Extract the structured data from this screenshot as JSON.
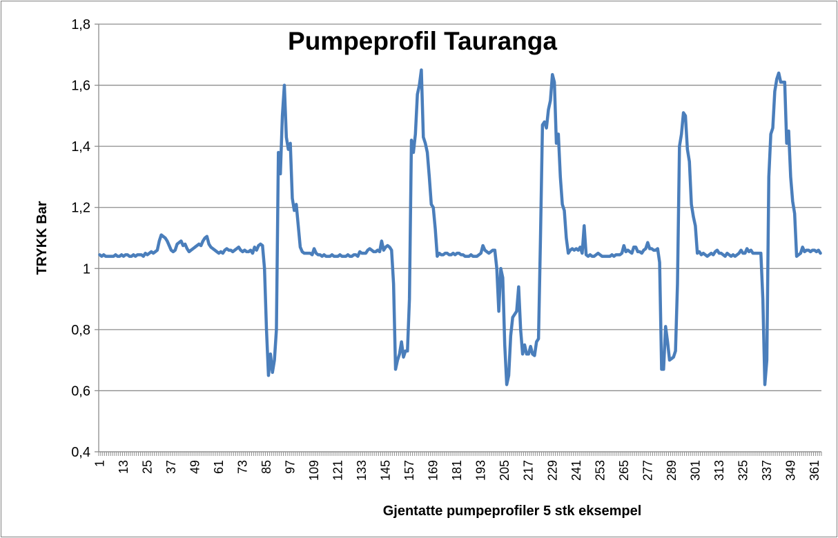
{
  "chart_data": {
    "type": "line",
    "title": "Pumpeprofil Tauranga",
    "x_label": "Gjentatte pumpeprofiler 5 stk eksempel",
    "y_label": "TRYKK Bar",
    "ylim": [
      0.4,
      1.8
    ],
    "yticks": [
      {
        "value": 0.4,
        "label": "0,4"
      },
      {
        "value": 0.6,
        "label": "0,6"
      },
      {
        "value": 0.8,
        "label": "0,8"
      },
      1,
      {
        "value": 1.2,
        "label": "1,2"
      },
      {
        "value": 1.4,
        "label": "1,4"
      },
      {
        "value": 1.6,
        "label": "1,6"
      },
      {
        "value": 1.8,
        "label": "1,8"
      }
    ],
    "grid": true,
    "color": "#4a7ebb",
    "categories": [
      1,
      null,
      null,
      null,
      null,
      null,
      null,
      null,
      null,
      null,
      null,
      null,
      13,
      null,
      null,
      null,
      null,
      null,
      null,
      null,
      null,
      null,
      null,
      null,
      25,
      null,
      null,
      null,
      null,
      null,
      null,
      null,
      null,
      null,
      null,
      null,
      37,
      null,
      null,
      null,
      null,
      null,
      null,
      null,
      null,
      null,
      null,
      null,
      49,
      null,
      null,
      null,
      null,
      null,
      null,
      null,
      null,
      null,
      null,
      null,
      61,
      null,
      null,
      null,
      null,
      null,
      null,
      null,
      null,
      null,
      null,
      null,
      73,
      null,
      null,
      null,
      null,
      null,
      null,
      null,
      null,
      null,
      null,
      null,
      85,
      null,
      null,
      null,
      null,
      null,
      null,
      null,
      null,
      null,
      null,
      null,
      97,
      null,
      null,
      null,
      null,
      null,
      null,
      null,
      null,
      null,
      null,
      null,
      109,
      null,
      null,
      null,
      null,
      null,
      null,
      null,
      null,
      null,
      null,
      null,
      121,
      null,
      null,
      null,
      null,
      null,
      null,
      null,
      null,
      null,
      null,
      null,
      133,
      null,
      null,
      null,
      null,
      null,
      null,
      null,
      null,
      null,
      null,
      null,
      145,
      null,
      null,
      null,
      null,
      null,
      null,
      null,
      null,
      null,
      null,
      null,
      157,
      null,
      null,
      null,
      null,
      null,
      null,
      null,
      null,
      null,
      null,
      null,
      169,
      null,
      null,
      null,
      null,
      null,
      null,
      null,
      null,
      null,
      null,
      null,
      181,
      null,
      null,
      null,
      null,
      null,
      null,
      null,
      null,
      null,
      null,
      null,
      193,
      null,
      null,
      null,
      null,
      null,
      null,
      null,
      null,
      null,
      null,
      null,
      205,
      null,
      null,
      null,
      null,
      null,
      null,
      null,
      null,
      null,
      null,
      null,
      217,
      null,
      null,
      null,
      null,
      null,
      null,
      null,
      null,
      null,
      null,
      null,
      229,
      null,
      null,
      null,
      null,
      null,
      null,
      null,
      null,
      null,
      null,
      null,
      241,
      null,
      null,
      null,
      null,
      null,
      null,
      null,
      null,
      null,
      null,
      null,
      253,
      null,
      null,
      null,
      null,
      null,
      null,
      null,
      null,
      null,
      null,
      null,
      265,
      null,
      null,
      null,
      null,
      null,
      null,
      null,
      null,
      null,
      null,
      null,
      277,
      null,
      null,
      null,
      null,
      null,
      null,
      null,
      null,
      null,
      null,
      null,
      289,
      null,
      null,
      null,
      null,
      null,
      null,
      null,
      null,
      null,
      null,
      null,
      301,
      null,
      null,
      null,
      null,
      null,
      null,
      null,
      null,
      null,
      null,
      null,
      313,
      null,
      null,
      null,
      null,
      null,
      null,
      null,
      null,
      null,
      null,
      null,
      325,
      null,
      null,
      null,
      null,
      null,
      null,
      null,
      null,
      null,
      null,
      null,
      337,
      null,
      null,
      null,
      null,
      null,
      null,
      null,
      null,
      null,
      null,
      null,
      349,
      null,
      null,
      null,
      null,
      null,
      null,
      null,
      null,
      null,
      null,
      null,
      361,
      null,
      null,
      null
    ],
    "values": [
      1.045,
      1.04,
      1.045,
      1.04,
      1.04,
      1.04,
      1.04,
      1.04,
      1.045,
      1.04,
      1.04,
      1.045,
      1.04,
      1.045,
      1.045,
      1.04,
      1.04,
      1.045,
      1.04,
      1.045,
      1.045,
      1.045,
      1.04,
      1.05,
      1.045,
      1.05,
      1.055,
      1.05,
      1.055,
      1.06,
      1.09,
      1.11,
      1.105,
      1.1,
      1.09,
      1.075,
      1.06,
      1.055,
      1.06,
      1.08,
      1.085,
      1.09,
      1.075,
      1.08,
      1.065,
      1.055,
      1.06,
      1.065,
      1.07,
      1.075,
      1.08,
      1.075,
      1.09,
      1.1,
      1.105,
      1.08,
      1.07,
      1.065,
      1.06,
      1.055,
      1.05,
      1.055,
      1.05,
      1.06,
      1.065,
      1.06,
      1.06,
      1.055,
      1.06,
      1.065,
      1.07,
      1.06,
      1.055,
      1.06,
      1.055,
      1.055,
      1.06,
      1.05,
      1.07,
      1.06,
      1.075,
      1.08,
      1.075,
      1.0,
      0.8,
      0.65,
      0.72,
      0.66,
      0.7,
      0.8,
      1.38,
      1.31,
      1.5,
      1.6,
      1.43,
      1.39,
      1.41,
      1.23,
      1.19,
      1.21,
      1.14,
      1.07,
      1.055,
      1.05,
      1.05,
      1.05,
      1.05,
      1.045,
      1.065,
      1.05,
      1.045,
      1.045,
      1.04,
      1.045,
      1.04,
      1.04,
      1.04,
      1.045,
      1.04,
      1.04,
      1.04,
      1.045,
      1.04,
      1.04,
      1.04,
      1.045,
      1.04,
      1.04,
      1.045,
      1.045,
      1.04,
      1.055,
      1.05,
      1.05,
      1.05,
      1.06,
      1.065,
      1.06,
      1.055,
      1.055,
      1.06,
      1.055,
      1.09,
      1.06,
      1.07,
      1.075,
      1.07,
      1.06,
      0.95,
      0.67,
      0.7,
      0.72,
      0.76,
      0.71,
      0.73,
      0.73,
      0.9,
      1.42,
      1.38,
      1.44,
      1.57,
      1.6,
      1.65,
      1.43,
      1.41,
      1.38,
      1.3,
      1.21,
      1.2,
      1.13,
      1.04,
      1.05,
      1.045,
      1.045,
      1.05,
      1.05,
      1.045,
      1.045,
      1.05,
      1.045,
      1.05,
      1.05,
      1.045,
      1.045,
      1.04,
      1.04,
      1.04,
      1.045,
      1.04,
      1.04,
      1.04,
      1.045,
      1.05,
      1.075,
      1.06,
      1.055,
      1.05,
      1.055,
      1.06,
      1.06,
      1.0,
      0.86,
      1.0,
      0.97,
      0.75,
      0.62,
      0.65,
      0.78,
      0.84,
      0.85,
      0.86,
      0.94,
      0.8,
      0.72,
      0.75,
      0.72,
      0.72,
      0.745,
      0.72,
      0.715,
      0.76,
      0.77,
      1.1,
      1.47,
      1.48,
      1.46,
      1.52,
      1.55,
      1.635,
      1.61,
      1.41,
      1.44,
      1.3,
      1.21,
      1.19,
      1.1,
      1.05,
      1.06,
      1.065,
      1.06,
      1.065,
      1.06,
      1.07,
      1.05,
      1.14,
      1.045,
      1.04,
      1.045,
      1.04,
      1.04,
      1.045,
      1.05,
      1.045,
      1.04,
      1.04,
      1.04,
      1.04,
      1.04,
      1.045,
      1.04,
      1.045,
      1.045,
      1.045,
      1.05,
      1.075,
      1.055,
      1.06,
      1.055,
      1.05,
      1.07,
      1.07,
      1.055,
      1.055,
      1.05,
      1.06,
      1.065,
      1.085,
      1.065,
      1.065,
      1.06,
      1.06,
      1.065,
      1.02,
      0.67,
      0.67,
      0.81,
      0.76,
      0.7,
      0.705,
      0.71,
      0.73,
      0.95,
      1.4,
      1.44,
      1.51,
      1.5,
      1.39,
      1.35,
      1.21,
      1.17,
      1.14,
      1.05,
      1.055,
      1.045,
      1.05,
      1.045,
      1.04,
      1.045,
      1.05,
      1.045,
      1.055,
      1.06,
      1.05,
      1.05,
      1.045,
      1.04,
      1.05,
      1.045,
      1.04,
      1.045,
      1.04,
      1.045,
      1.05,
      1.06,
      1.05,
      1.05,
      1.065,
      1.055,
      1.06,
      1.05,
      1.05,
      1.05,
      1.05,
      1.05,
      0.9,
      0.62,
      0.7,
      1.3,
      1.44,
      1.46,
      1.58,
      1.62,
      1.64,
      1.61,
      1.61,
      1.61,
      1.41,
      1.45,
      1.3,
      1.22,
      1.18,
      1.04,
      1.045,
      1.05,
      1.07,
      1.055,
      1.06,
      1.06,
      1.055,
      1.06,
      1.06,
      1.055,
      1.06,
      1.05
    ]
  }
}
